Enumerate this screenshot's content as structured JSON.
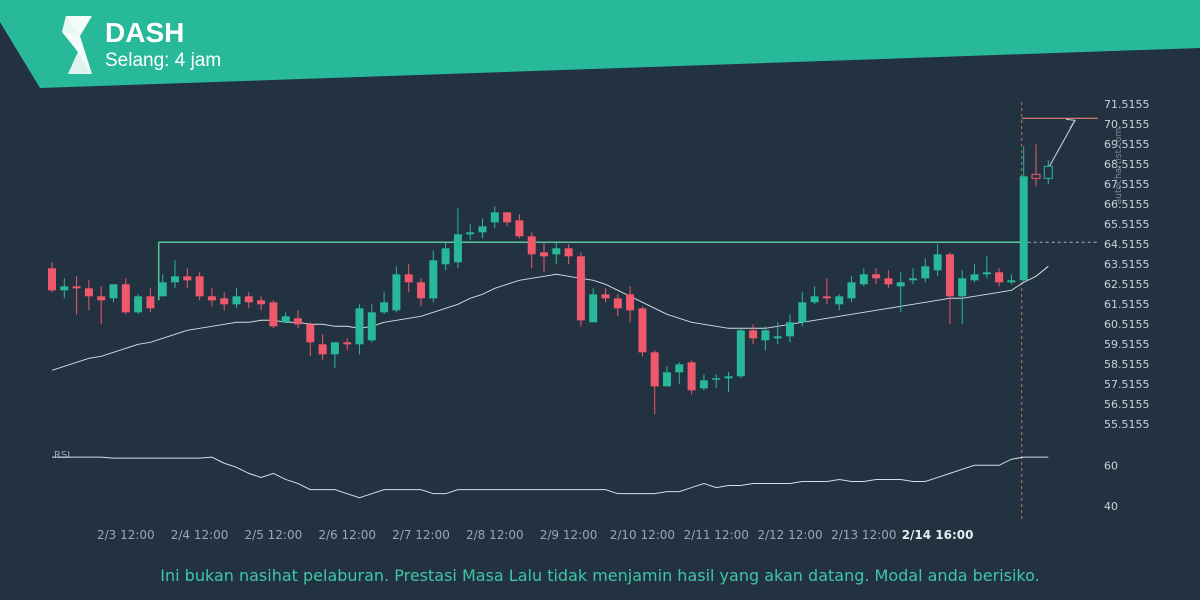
{
  "header": {
    "symbol": "DASH",
    "interval": "Selang: 4 jam",
    "banner_color": "#27b99a",
    "logo_icon": "autochartist-logo-icon"
  },
  "watermark": "autochartist.com",
  "disclaimer": "Ini bukan nasihat pelaburan. Prestasi Masa Lalu tidak menjamin hasil yang akan datang. Modal anda berisiko.",
  "chart_data": {
    "type": "candlestick",
    "price_axis": {
      "ticks": [
        "71.5155",
        "70.5155",
        "69.5155",
        "68.5155",
        "67.5155",
        "66.5155",
        "65.5155",
        "64.5155",
        "63.5155",
        "62.5155",
        "61.5155",
        "60.5155",
        "59.5155",
        "58.5155",
        "57.5155",
        "56.5155",
        "55.5155"
      ],
      "range": [
        55.5155,
        71.5155
      ]
    },
    "x_axis": {
      "ticks": [
        "2/3 12:00",
        "2/4 12:00",
        "2/5 12:00",
        "2/6 12:00",
        "2/7 12:00",
        "2/8 12:00",
        "2/9 12:00",
        "2/10 12:00",
        "2/11 12:00",
        "2/12 12:00",
        "2/13 12:00",
        "2/14 16:00"
      ],
      "tick_index": [
        6,
        12,
        18,
        24,
        30,
        36,
        42,
        48,
        54,
        60,
        66,
        72
      ],
      "highlighted": "2/14 16:00"
    },
    "colors": {
      "up": "#27b99a",
      "down": "#f0586b",
      "moving_average": "#d7dde3",
      "resistance": "#5cc69b",
      "target": "#e8836a",
      "rsi": "#d7dde3"
    },
    "candles": [
      [
        63.3,
        62.2,
        63.6,
        62.1
      ],
      [
        62.2,
        62.4,
        62.8,
        61.8
      ],
      [
        62.4,
        62.3,
        62.9,
        61.0
      ],
      [
        62.3,
        61.9,
        62.7,
        61.2
      ],
      [
        61.9,
        61.7,
        62.4,
        60.5
      ],
      [
        61.8,
        62.5,
        62.5,
        61.6
      ],
      [
        62.5,
        61.1,
        62.8,
        61.0
      ],
      [
        61.1,
        61.9,
        62.0,
        61.0
      ],
      [
        61.9,
        61.3,
        62.3,
        61.1
      ],
      [
        61.9,
        62.6,
        63.0,
        61.9
      ],
      [
        62.6,
        62.9,
        63.7,
        62.3
      ],
      [
        62.9,
        62.7,
        63.3,
        62.3
      ],
      [
        62.9,
        61.9,
        63.1,
        61.7
      ],
      [
        61.9,
        61.7,
        62.3,
        61.4
      ],
      [
        61.8,
        61.5,
        62.1,
        61.2
      ],
      [
        61.5,
        61.9,
        62.3,
        61.3
      ],
      [
        61.9,
        61.6,
        62.1,
        61.3
      ],
      [
        61.7,
        61.5,
        61.9,
        61.2
      ],
      [
        61.6,
        60.4,
        61.7,
        60.3
      ],
      [
        60.6,
        60.9,
        61.1,
        60.6
      ],
      [
        60.8,
        60.5,
        61.2,
        60.3
      ],
      [
        60.5,
        59.6,
        60.6,
        58.9
      ],
      [
        59.5,
        59.0,
        60.0,
        58.7
      ],
      [
        59.0,
        59.6,
        59.6,
        58.3
      ],
      [
        59.6,
        59.5,
        59.8,
        59.2
      ],
      [
        59.5,
        61.3,
        61.5,
        59.0
      ],
      [
        59.7,
        61.1,
        61.5,
        59.6
      ],
      [
        61.1,
        61.6,
        62.1,
        61.0
      ],
      [
        61.2,
        63.0,
        63.4,
        61.1
      ],
      [
        63.0,
        62.6,
        63.5,
        62.1
      ],
      [
        62.6,
        61.8,
        62.8,
        61.4
      ],
      [
        61.8,
        63.7,
        64.2,
        61.6
      ],
      [
        63.5,
        64.3,
        64.6,
        63.2
      ],
      [
        63.6,
        65.0,
        66.3,
        63.3
      ],
      [
        65.0,
        65.1,
        65.5,
        64.7
      ],
      [
        65.1,
        65.4,
        65.8,
        64.8
      ],
      [
        65.6,
        66.1,
        66.4,
        65.3
      ],
      [
        66.1,
        65.6,
        66.1,
        65.4
      ],
      [
        65.7,
        64.9,
        66.0,
        64.8
      ],
      [
        64.9,
        64.0,
        65.1,
        63.3
      ],
      [
        64.1,
        63.9,
        64.6,
        63.1
      ],
      [
        64.0,
        64.3,
        64.6,
        63.5
      ],
      [
        64.3,
        63.9,
        64.5,
        63.5
      ],
      [
        63.9,
        60.7,
        64.1,
        60.4
      ],
      [
        60.6,
        62.0,
        62.3,
        60.6
      ],
      [
        62.0,
        61.8,
        62.3,
        61.6
      ],
      [
        61.8,
        61.3,
        62.0,
        60.9
      ],
      [
        62.0,
        61.2,
        62.4,
        60.6
      ],
      [
        61.3,
        59.1,
        61.4,
        58.9
      ],
      [
        59.1,
        57.4,
        59.2,
        56.0
      ],
      [
        57.4,
        58.1,
        58.4,
        57.4
      ],
      [
        58.1,
        58.5,
        58.6,
        57.5
      ],
      [
        58.6,
        57.2,
        58.7,
        57.0
      ],
      [
        57.3,
        57.7,
        58.0,
        57.2
      ],
      [
        57.8,
        57.8,
        58.0,
        57.3
      ],
      [
        57.8,
        57.9,
        58.1,
        57.1
      ],
      [
        57.9,
        60.2,
        60.3,
        57.8
      ],
      [
        60.2,
        59.8,
        60.5,
        59.5
      ],
      [
        59.7,
        60.2,
        60.4,
        59.2
      ],
      [
        59.8,
        59.9,
        60.6,
        59.5
      ],
      [
        59.9,
        60.6,
        61.0,
        59.6
      ],
      [
        60.6,
        61.6,
        62.1,
        60.4
      ],
      [
        61.6,
        61.9,
        62.4,
        61.5
      ],
      [
        61.9,
        61.8,
        62.8,
        61.5
      ],
      [
        61.5,
        61.9,
        62.0,
        61.2
      ],
      [
        61.8,
        62.6,
        62.9,
        61.6
      ],
      [
        62.5,
        63.0,
        63.3,
        62.4
      ],
      [
        63.0,
        62.8,
        63.3,
        62.5
      ],
      [
        62.8,
        62.5,
        63.2,
        62.3
      ],
      [
        62.4,
        62.6,
        63.1,
        61.1
      ],
      [
        62.7,
        62.8,
        63.3,
        62.5
      ],
      [
        62.8,
        63.4,
        63.8,
        62.6
      ],
      [
        63.2,
        64.0,
        64.5,
        62.9
      ],
      [
        64.0,
        61.9,
        64.1,
        60.5
      ],
      [
        61.9,
        62.8,
        63.2,
        60.5
      ],
      [
        62.7,
        63.0,
        63.5,
        62.6
      ],
      [
        63.0,
        63.1,
        63.9,
        62.8
      ],
      [
        63.1,
        62.6,
        63.3,
        62.4
      ],
      [
        62.6,
        62.7,
        63.0,
        62.5
      ],
      [
        62.7,
        67.9,
        69.4,
        62.6
      ],
      [
        68.0,
        67.8,
        69.5,
        67.4
      ],
      [
        67.8,
        68.4,
        68.7,
        67.5
      ]
    ],
    "moving_average": [
      58.2,
      58.4,
      58.6,
      58.8,
      58.9,
      59.1,
      59.3,
      59.5,
      59.6,
      59.8,
      60.0,
      60.2,
      60.3,
      60.4,
      60.5,
      60.6,
      60.6,
      60.7,
      60.7,
      60.6,
      60.6,
      60.5,
      60.5,
      60.4,
      60.4,
      60.3,
      60.4,
      60.6,
      60.7,
      60.8,
      60.9,
      61.1,
      61.3,
      61.5,
      61.8,
      62.0,
      62.3,
      62.5,
      62.7,
      62.8,
      62.9,
      63.0,
      62.9,
      62.8,
      62.7,
      62.5,
      62.2,
      61.9,
      61.6,
      61.3,
      61.0,
      60.8,
      60.6,
      60.5,
      60.4,
      60.3,
      60.3,
      60.3,
      60.3,
      60.4,
      60.5,
      60.6,
      60.7,
      60.8,
      60.9,
      61.0,
      61.1,
      61.2,
      61.3,
      61.4,
      61.5,
      61.6,
      61.7,
      61.8,
      61.8,
      61.9,
      62.0,
      62.1,
      62.2,
      62.6,
      62.9,
      63.4
    ],
    "resistance_level": 64.6,
    "target_level": 70.8,
    "pattern_start_index": 9,
    "pattern_end_index": 83,
    "rsi": {
      "label": "RSI",
      "ticks": [
        60,
        40
      ],
      "range": [
        34,
        70
      ],
      "values": [
        64,
        64,
        64,
        64,
        64,
        63.5,
        63.5,
        63.5,
        63.5,
        63.5,
        63.5,
        63.5,
        63.5,
        64,
        61,
        59,
        56,
        54,
        56,
        53,
        51,
        48,
        48,
        48,
        46,
        44,
        46,
        48,
        48,
        48,
        48,
        46,
        46,
        48,
        48,
        48,
        48,
        48,
        48,
        48,
        48,
        48,
        48,
        48,
        48,
        48,
        46,
        46,
        46,
        46,
        47,
        47,
        49,
        51,
        49,
        50,
        50,
        51,
        51,
        51,
        51,
        52,
        52,
        52,
        53,
        52,
        52,
        53,
        53,
        53,
        52,
        52,
        54,
        56,
        58,
        60,
        60,
        60,
        63,
        64,
        64,
        64
      ]
    }
  }
}
